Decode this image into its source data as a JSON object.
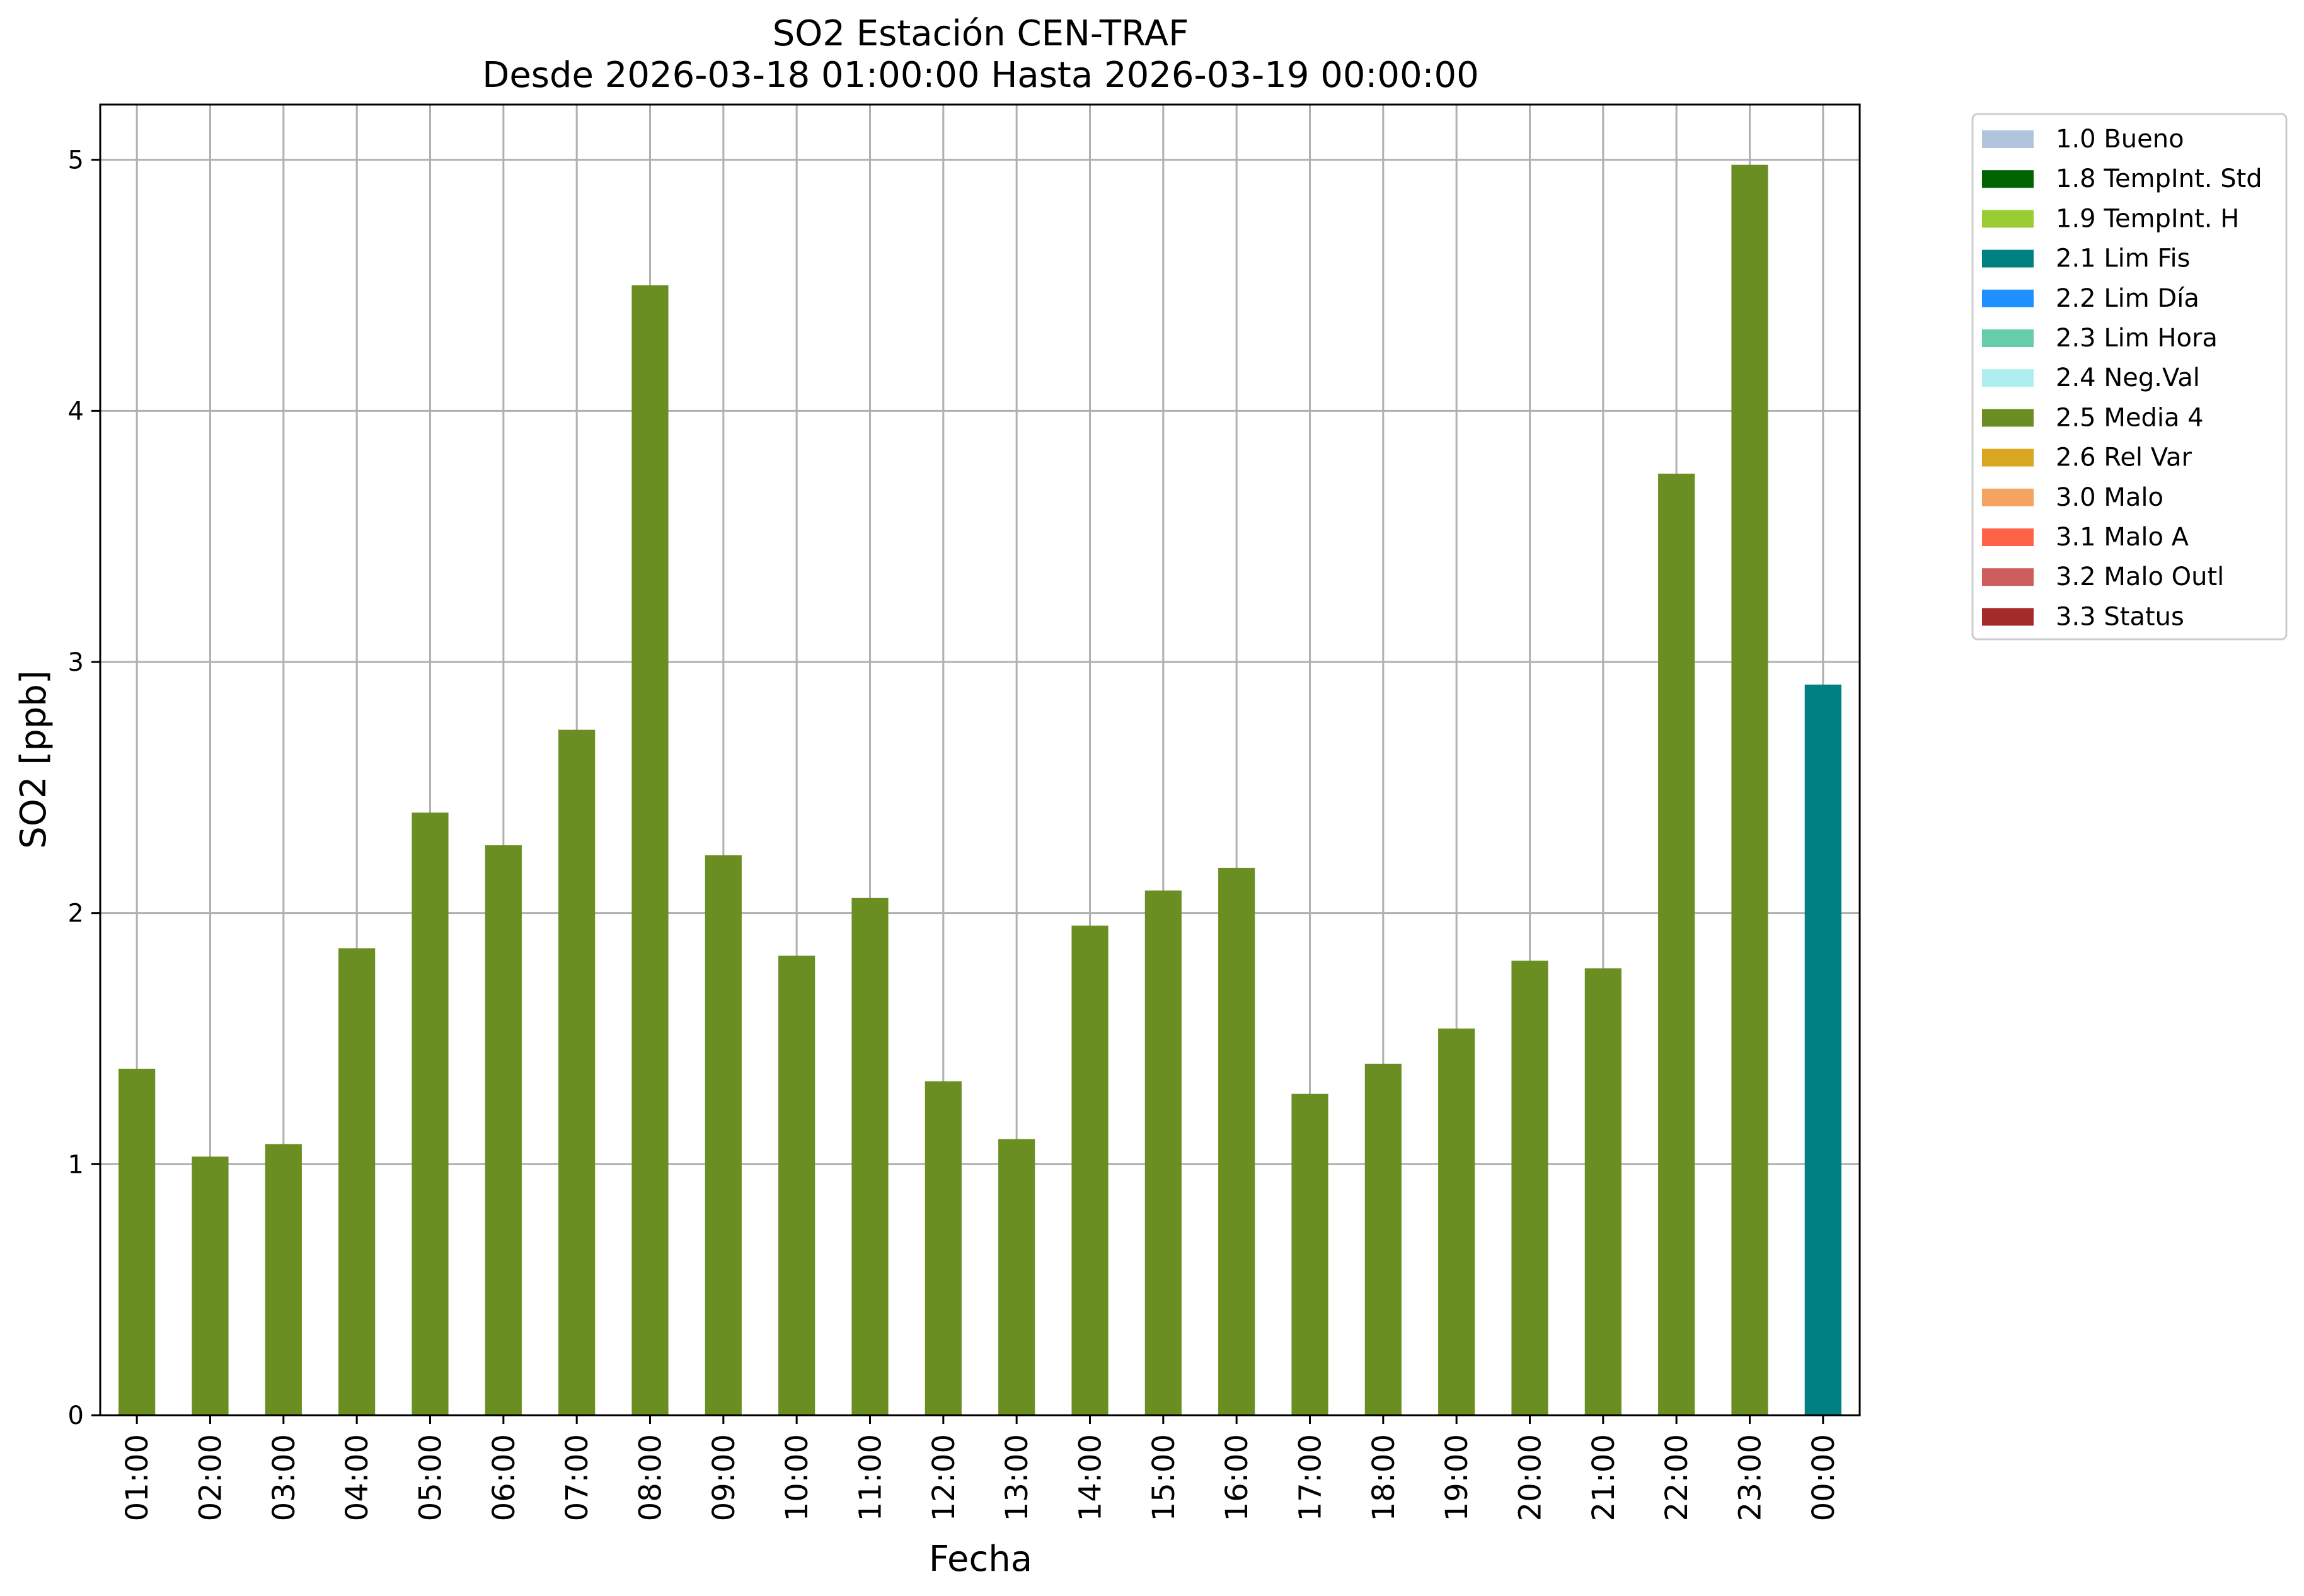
{
  "chart_data": {
    "type": "bar",
    "title_line1": "SO2 Estación CEN-TRAF",
    "title_line2": "Desde 2026-03-18 01:00:00 Hasta 2026-03-19 00:00:00",
    "xlabel": "Fecha",
    "ylabel": "SO2 [ppb]",
    "ylim": [
      0,
      5.22
    ],
    "yticks": [
      "0",
      "1",
      "2",
      "3",
      "4",
      "5"
    ],
    "grid": true,
    "legend_placement": "outside-top-right",
    "categories": [
      "01:00",
      "02:00",
      "03:00",
      "04:00",
      "05:00",
      "06:00",
      "07:00",
      "08:00",
      "09:00",
      "10:00",
      "11:00",
      "12:00",
      "13:00",
      "14:00",
      "15:00",
      "16:00",
      "17:00",
      "18:00",
      "19:00",
      "20:00",
      "21:00",
      "22:00",
      "23:00",
      "00:00"
    ],
    "values": [
      1.38,
      1.03,
      1.08,
      1.86,
      2.4,
      2.27,
      2.73,
      4.5,
      2.23,
      1.83,
      2.06,
      1.33,
      1.1,
      1.95,
      2.09,
      2.18,
      1.28,
      1.4,
      1.54,
      1.81,
      1.78,
      3.75,
      4.98,
      2.91
    ],
    "flags": [
      "2.5 Media 4",
      "2.5 Media 4",
      "2.5 Media 4",
      "2.5 Media 4",
      "2.5 Media 4",
      "2.5 Media 4",
      "2.5 Media 4",
      "2.5 Media 4",
      "2.5 Media 4",
      "2.5 Media 4",
      "2.5 Media 4",
      "2.5 Media 4",
      "2.5 Media 4",
      "2.5 Media 4",
      "2.5 Media 4",
      "2.5 Media 4",
      "2.5 Media 4",
      "2.5 Media 4",
      "2.5 Media 4",
      "2.5 Media 4",
      "2.5 Media 4",
      "2.5 Media 4",
      "2.5 Media 4",
      "2.1 Lim Fis"
    ],
    "legend": [
      {
        "label": "1.0 Bueno",
        "color": "#b0c4de"
      },
      {
        "label": "1.8 TempInt. Std",
        "color": "#006400"
      },
      {
        "label": "1.9 TempInt. H",
        "color": "#9acd32"
      },
      {
        "label": "2.1 Lim Fis",
        "color": "#008080"
      },
      {
        "label": "2.2 Lim Día",
        "color": "#1e90ff"
      },
      {
        "label": "2.3 Lim Hora",
        "color": "#66cdaa"
      },
      {
        "label": "2.4 Neg.Val",
        "color": "#afeeee"
      },
      {
        "label": "2.5 Media 4",
        "color": "#6b8e23"
      },
      {
        "label": "2.6 Rel Var",
        "color": "#daa520"
      },
      {
        "label": "3.0 Malo",
        "color": "#f4a460"
      },
      {
        "label": "3.1 Malo A",
        "color": "#ff6347"
      },
      {
        "label": "3.2 Malo Outl",
        "color": "#cd5c5c"
      },
      {
        "label": "3.3 Status",
        "color": "#a52a2a"
      }
    ]
  }
}
